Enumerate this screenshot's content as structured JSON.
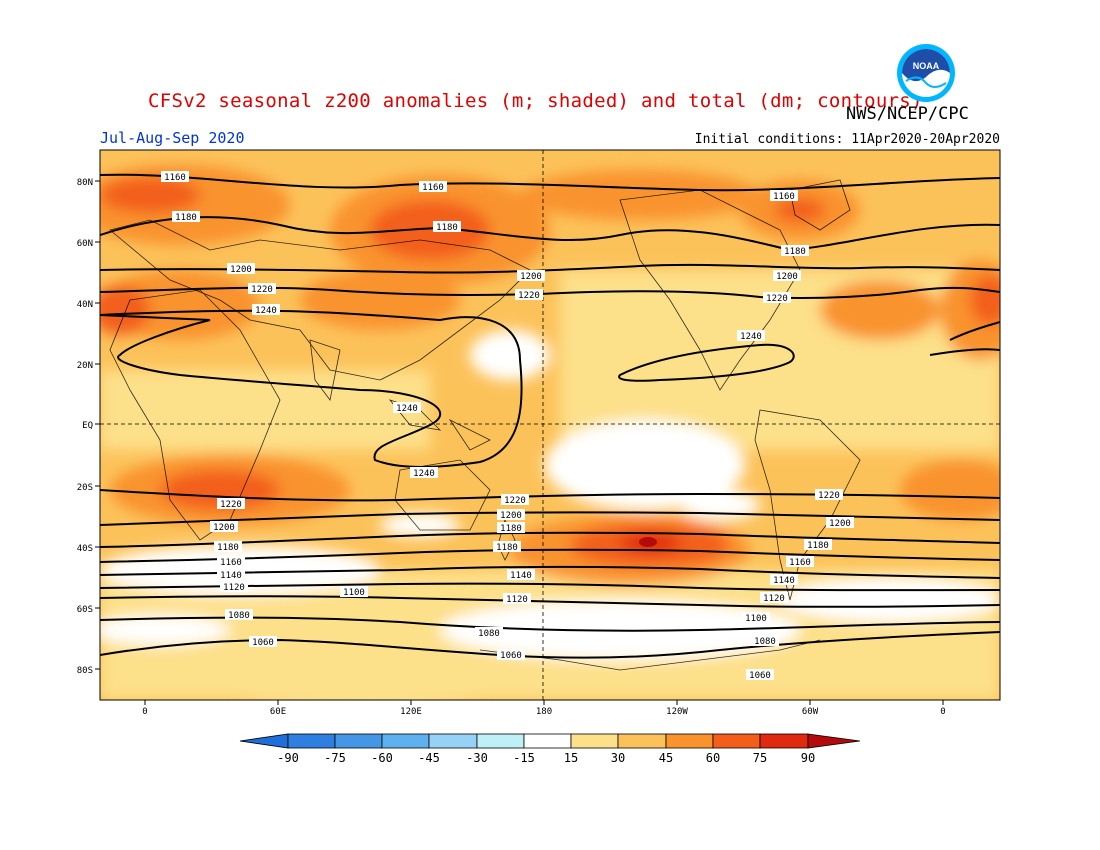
{
  "header": {
    "title": "CFSv2 seasonal z200 anomalies (m; shaded) and total (dm; contours)",
    "agency": "NWS/NCEP/CPC",
    "period": "Jul-Aug-Sep 2020",
    "initial_conditions": "Initial conditions: 11Apr2020-20Apr2020",
    "logo_text": "NOAA"
  },
  "colors": {
    "title": "#e00000",
    "period": "#0033dd",
    "logo_blue": "#1f4ea8",
    "logo_cyan": "#00b7ff"
  },
  "axes": {
    "lat_labels": [
      "80N",
      "60N",
      "40N",
      "20N",
      "EQ",
      "20S",
      "40S",
      "60S",
      "80S"
    ],
    "lon_labels": [
      "0",
      "60E",
      "120E",
      "180",
      "120W",
      "60W",
      "0"
    ]
  },
  "colorbar": {
    "ticks": [
      "-90",
      "-75",
      "-60",
      "-45",
      "-30",
      "-15",
      "15",
      "30",
      "45",
      "60",
      "75",
      "90"
    ],
    "colors": [
      "#1e6fd9",
      "#2e7fe0",
      "#4696e6",
      "#5fb0ef",
      "#95d2f5",
      "#bfeff7",
      "#ffffff",
      "#fde08a",
      "#fcc25a",
      "#f9932e",
      "#f35f1a",
      "#e02a10",
      "#b30b0b"
    ]
  },
  "contour_labels": {
    "c1160a": "1160",
    "c1160b": "1160",
    "c1160c": "1160",
    "c1180a": "1180",
    "c1180b": "1180",
    "c1180c": "1180",
    "c1200a": "1200",
    "c1200b": "1200",
    "c1200c": "1200",
    "c1220a": "1220",
    "c1220b": "1220",
    "c1220c": "1220",
    "c1240a": "1240",
    "c1240b": "1240",
    "c1240c": "1240",
    "c1240d": "1240",
    "s1220a": "1220",
    "s1220b": "1220",
    "s1220c": "1220",
    "s1200a": "1200",
    "s1200b": "1200",
    "s1200c": "1200",
    "s1180a": "1180",
    "s1180b": "1180",
    "s1180c": "1180",
    "s1180d": "1180",
    "s1160a": "1160",
    "s1160b": "1160",
    "s1140a": "1140",
    "s1140b": "1140",
    "s1140c": "1140",
    "s1120a": "1120",
    "s1120b": "1120",
    "s1120c": "1120",
    "s1100a": "1100",
    "s1100b": "1100",
    "s1080a": "1080",
    "s1080b": "1080",
    "s1080c": "1080",
    "s1060a": "1060",
    "s1060b": "1060",
    "s1060c": "1060"
  }
}
